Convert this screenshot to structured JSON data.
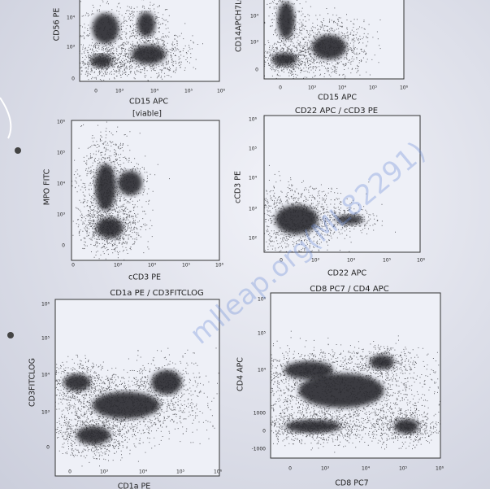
{
  "plots": [
    {
      "y_label": "CD56 PE",
      "x_label": "CD15 APC",
      "note": "[viable]",
      "y_ticks": [
        "10⁴",
        "10³",
        "0"
      ],
      "x_ticks": [
        "0",
        "10³",
        "10⁴",
        "10⁵",
        "10⁶"
      ]
    },
    {
      "y_label": "CD14APCH7LOG",
      "x_label": "CD15 APC",
      "y_ticks": [
        "10⁴",
        "10³",
        "0"
      ],
      "x_ticks": [
        "0",
        "10³",
        "10⁴",
        "10⁵",
        "10⁶"
      ]
    },
    {
      "y_label": "MPO FITC",
      "x_label": "cCD3 PE",
      "y_ticks": [
        "10⁶",
        "10⁵",
        "10⁴",
        "10³",
        "0"
      ],
      "x_ticks": [
        "0",
        "10³",
        "10⁴",
        "10⁵",
        "10⁶"
      ]
    },
    {
      "title": "CD22 APC / cCD3 PE",
      "y_label": "cCD3 PE",
      "x_label": "CD22 APC",
      "y_ticks": [
        "10⁶",
        "10⁵",
        "10⁴",
        "10³",
        "10²"
      ],
      "x_ticks": [
        "0",
        "10³",
        "10⁴",
        "10⁵",
        "10⁶"
      ]
    },
    {
      "title": "CD1a PE / CD3FITCLOG",
      "y_label": "CD3FITCLOG",
      "x_label": "CD1a PE",
      "y_ticks": [
        "10⁶",
        "10⁵",
        "10⁴",
        "10³",
        "0"
      ],
      "x_ticks": [
        "0",
        "10³",
        "10⁴",
        "10⁵",
        "10⁶"
      ]
    },
    {
      "title": "CD8 PC7 / CD4 APC",
      "y_label": "CD4 APC",
      "x_label": "CD8 PC7",
      "y_ticks": [
        "10⁶",
        "10⁵",
        "10⁴",
        "1000",
        "0",
        "-1000"
      ],
      "x_ticks": [
        "0",
        "10³",
        "10⁴",
        "10⁵",
        "10⁶"
      ]
    }
  ],
  "watermark": "mlleap.org(ML82291)"
}
